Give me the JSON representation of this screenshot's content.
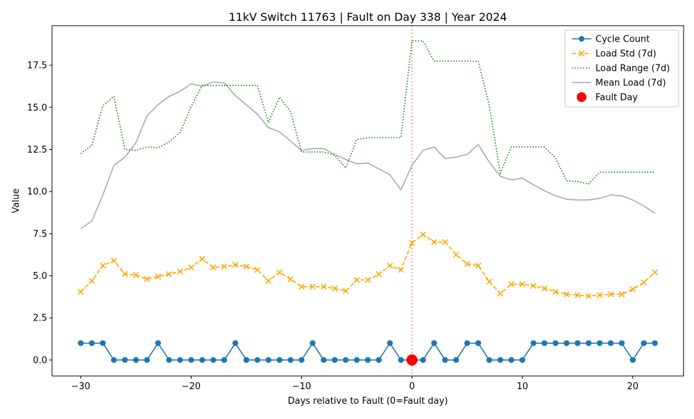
{
  "chart_data": {
    "type": "line",
    "title": "11kV Switch 11763 | Fault on Day 338 | Year 2024",
    "xlabel": "Days relative to Fault (0=Fault day)",
    "ylabel": "Value",
    "xlim": [
      -32.6,
      24.6
    ],
    "ylim": [
      -0.95,
      19.85
    ],
    "xticks": [
      -30,
      -20,
      -10,
      0,
      10,
      20
    ],
    "xtick_labels": [
      "−30",
      "−20",
      "−10",
      "0",
      "10",
      "20"
    ],
    "yticks": [
      0,
      2.5,
      5,
      7.5,
      10,
      12.5,
      15,
      17.5
    ],
    "ytick_labels": [
      "0.0",
      "2.5",
      "5.0",
      "7.5",
      "10.0",
      "12.5",
      "15.0",
      "17.5"
    ],
    "grid": false,
    "legend_position": "top-right",
    "x": [
      -30,
      -29,
      -28,
      -27,
      -26,
      -25,
      -24,
      -23,
      -22,
      -21,
      -20,
      -19,
      -18,
      -17,
      -16,
      -15,
      -14,
      -13,
      -12,
      -11,
      -10,
      -9,
      -8,
      -7,
      -6,
      -5,
      -4,
      -3,
      -2,
      -1,
      0,
      1,
      2,
      3,
      4,
      5,
      6,
      7,
      8,
      9,
      10,
      11,
      12,
      13,
      14,
      15,
      16,
      17,
      18,
      19,
      20,
      21,
      22
    ],
    "series": [
      {
        "name": "Cycle Count",
        "color": "#1f77b4",
        "style": "solid-circle-markers",
        "values": [
          1,
          1,
          1,
          0,
          0,
          0,
          0,
          1,
          0,
          0,
          0,
          0,
          0,
          0,
          1,
          0,
          0,
          0,
          0,
          0,
          0,
          1,
          0,
          0,
          0,
          0,
          0,
          0,
          1,
          0,
          0,
          0,
          1,
          0,
          0,
          1,
          1,
          0,
          0,
          0,
          0,
          1,
          1,
          1,
          1,
          1,
          1,
          1,
          1,
          1,
          0,
          1,
          1
        ]
      },
      {
        "name": "Load Std (7d)",
        "color": "#ffa500",
        "style": "dashed-x-markers",
        "values": [
          4.05,
          4.7,
          5.6,
          5.9,
          5.1,
          5.05,
          4.8,
          4.95,
          5.1,
          5.25,
          5.5,
          6.0,
          5.5,
          5.55,
          5.65,
          5.55,
          5.35,
          4.7,
          5.2,
          4.8,
          4.35,
          4.35,
          4.35,
          4.25,
          4.1,
          4.75,
          4.75,
          5.1,
          5.6,
          5.35,
          6.95,
          7.45,
          7.0,
          7.0,
          6.25,
          5.7,
          5.6,
          4.65,
          3.95,
          4.5,
          4.5,
          4.4,
          4.25,
          4.05,
          3.9,
          3.85,
          3.8,
          3.85,
          3.9,
          3.9,
          4.2,
          4.6,
          5.2
        ]
      },
      {
        "name": "Load Range (7d)",
        "color": "#008000",
        "style": "dotted",
        "values": [
          12.25,
          12.75,
          15.1,
          15.65,
          12.5,
          12.45,
          12.65,
          12.6,
          12.95,
          13.5,
          15.05,
          16.3,
          16.3,
          16.3,
          16.3,
          16.3,
          16.3,
          14.1,
          15.6,
          14.75,
          12.35,
          12.35,
          12.35,
          12.15,
          11.4,
          13.1,
          13.2,
          13.2,
          13.2,
          13.2,
          18.95,
          18.95,
          17.75,
          17.75,
          17.75,
          17.75,
          17.75,
          15.1,
          11.1,
          12.65,
          12.65,
          12.65,
          12.65,
          12.0,
          10.65,
          10.6,
          10.45,
          11.15,
          11.15,
          11.15,
          11.15,
          11.15,
          11.15
        ]
      },
      {
        "name": "Mean Load (7d)",
        "color": "#aaaaaa",
        "style": "solid",
        "values": [
          7.8,
          8.25,
          9.8,
          11.55,
          12.05,
          12.9,
          14.5,
          15.15,
          15.65,
          15.95,
          16.4,
          16.25,
          16.5,
          16.45,
          15.7,
          15.15,
          14.6,
          13.8,
          13.55,
          13.0,
          12.45,
          12.55,
          12.55,
          12.2,
          11.9,
          11.65,
          11.7,
          11.35,
          11.0,
          10.1,
          11.55,
          12.45,
          12.65,
          11.95,
          12.05,
          12.2,
          12.8,
          11.75,
          10.9,
          10.7,
          10.8,
          10.4,
          10.05,
          9.75,
          9.55,
          9.5,
          9.5,
          9.6,
          9.8,
          9.75,
          9.5,
          9.15,
          8.7
        ]
      }
    ],
    "fault_marker": {
      "name": "Fault Day",
      "x": 0,
      "y": 0,
      "color": "#ff0000"
    },
    "fault_line": {
      "x": 0,
      "color": "#f08080"
    }
  }
}
